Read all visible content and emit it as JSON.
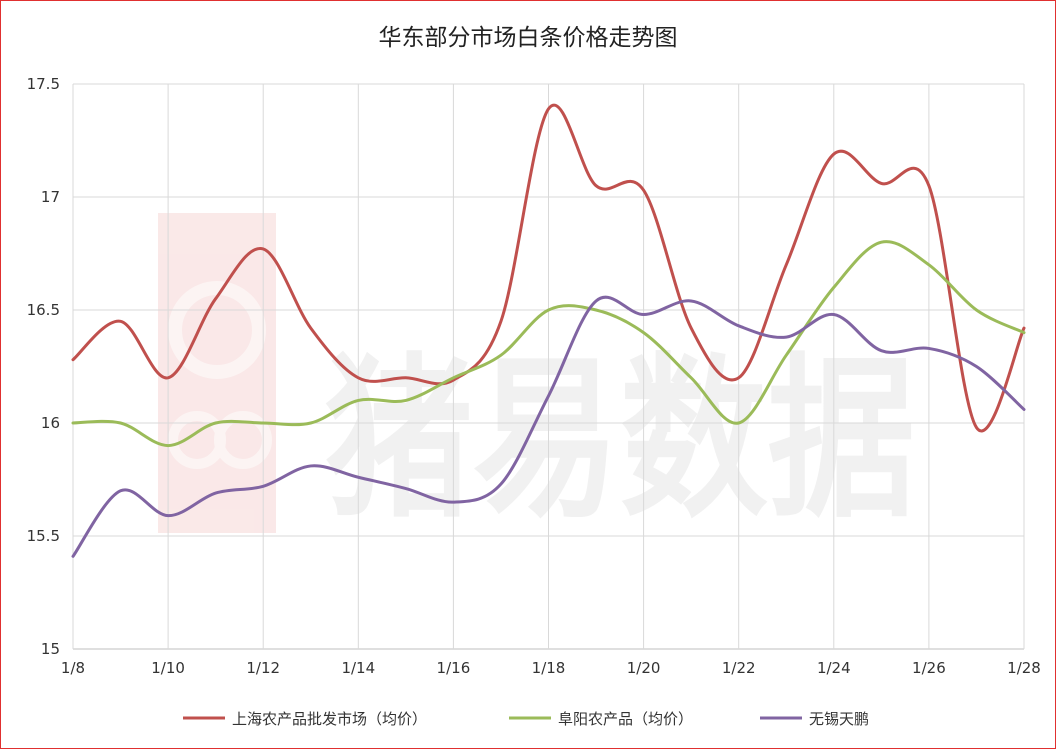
{
  "chart_data": {
    "type": "line",
    "title": "华东部分市场白条价格走势图",
    "xlabel": "",
    "ylabel": "",
    "x": [
      "1/8",
      "1/9",
      "1/10",
      "1/11",
      "1/12",
      "1/13",
      "1/14",
      "1/15",
      "1/16",
      "1/17",
      "1/18",
      "1/19",
      "1/20",
      "1/21",
      "1/22",
      "1/23",
      "1/24",
      "1/25",
      "1/26",
      "1/27",
      "1/28"
    ],
    "x_tick_labels": [
      "1/8",
      "1/10",
      "1/12",
      "1/14",
      "1/16",
      "1/18",
      "1/20",
      "1/22",
      "1/24",
      "1/26",
      "1/28"
    ],
    "ylim": [
      15,
      17.5
    ],
    "y_ticks": [
      "15",
      "15.5",
      "16",
      "16.5",
      "17",
      "17.5"
    ],
    "grid": true,
    "legend_position": "bottom",
    "series": [
      {
        "name": "上海农产品批发市场（均价）",
        "color": "#c0504d",
        "values": [
          16.28,
          16.45,
          16.2,
          16.55,
          16.77,
          16.42,
          16.2,
          16.2,
          16.19,
          16.45,
          17.39,
          17.05,
          17.03,
          16.42,
          16.2,
          16.7,
          17.19,
          17.06,
          17.05,
          15.98,
          16.42
        ]
      },
      {
        "name": "阜阳农产品（均价）",
        "color": "#9bbb59",
        "values": [
          16.0,
          16.0,
          15.9,
          16.0,
          16.0,
          16.0,
          16.1,
          16.1,
          16.2,
          16.3,
          16.5,
          16.5,
          16.4,
          16.2,
          16.0,
          16.3,
          16.6,
          16.8,
          16.7,
          16.5,
          16.4
        ]
      },
      {
        "name": "无锡天鹏",
        "color": "#8064a2",
        "values": [
          15.41,
          15.7,
          15.59,
          15.69,
          15.72,
          15.81,
          15.76,
          15.71,
          15.65,
          15.73,
          16.12,
          16.54,
          16.48,
          16.54,
          16.43,
          16.38,
          16.48,
          16.32,
          16.33,
          16.25,
          16.06
        ]
      }
    ]
  },
  "watermark": {
    "text": "猪易数据"
  }
}
